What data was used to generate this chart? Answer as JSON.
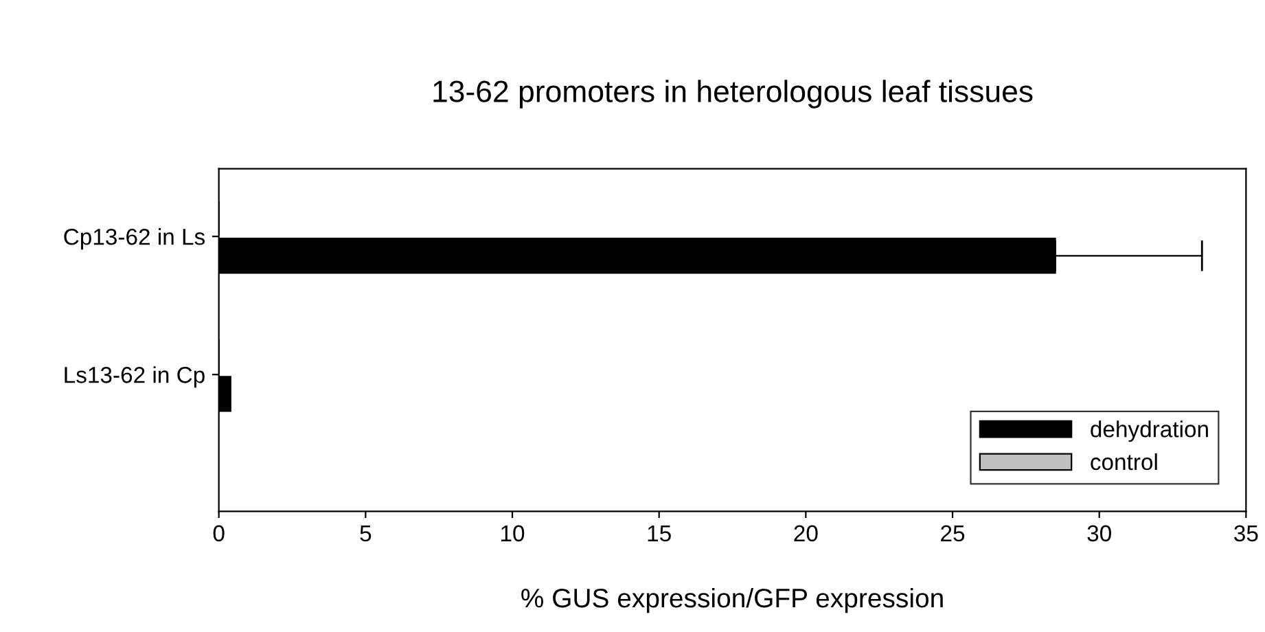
{
  "chart_data": {
    "type": "bar",
    "orientation": "horizontal",
    "title": "13-62 promoters in heterologous leaf tissues",
    "xlabel": "% GUS expression/GFP expression",
    "categories": [
      "Cp13-62 in Ls",
      "Ls13-62 in Cp"
    ],
    "series": [
      {
        "name": "dehydration",
        "color": "#000000",
        "values": [
          28.5,
          0.4
        ],
        "errors": [
          5.0,
          null
        ]
      },
      {
        "name": "control",
        "color": "#c0c0c0",
        "values": [
          0,
          0
        ]
      }
    ],
    "xlim": [
      0,
      35
    ],
    "xticks": [
      0,
      5,
      10,
      15,
      20,
      25,
      30,
      35
    ],
    "grid": false,
    "legend": "bottom right"
  }
}
